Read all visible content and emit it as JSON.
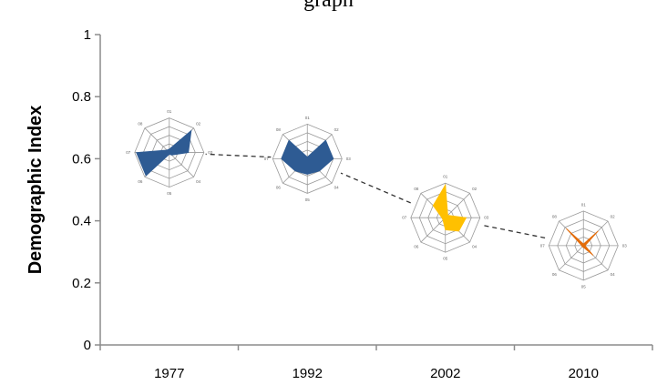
{
  "top_text": "graph",
  "chart_data": {
    "type": "scatter",
    "title": "",
    "xlabel": "",
    "ylabel": "Demographic Index",
    "ylim": [
      0,
      1
    ],
    "yticks": [
      0,
      0.2,
      0.4,
      0.6,
      0.8,
      1
    ],
    "ytick_labels": [
      "0",
      "0.2",
      "0.4",
      "0.6",
      "0.8",
      "1"
    ],
    "categories": [
      "1977",
      "1992",
      "2002",
      "2010"
    ],
    "values": [
      0.62,
      0.6,
      0.41,
      0.32
    ],
    "trend_line": "dashed",
    "grid": false,
    "legend": "none",
    "marker": "radar-glyph",
    "radar_axes": [
      "01",
      "02",
      "03",
      "04",
      "05",
      "06",
      "07",
      "08"
    ],
    "radar_glyphs": [
      {
        "year": "1977",
        "color": "#2E5B93",
        "values": [
          0.1,
          0.9,
          0.55,
          0.1,
          0.05,
          0.95,
          0.95,
          0.1
        ]
      },
      {
        "year": "1992",
        "color": "#2E5B93",
        "values": [
          0.05,
          0.75,
          0.75,
          0.5,
          0.45,
          0.5,
          0.75,
          0.75
        ]
      },
      {
        "year": "2002",
        "color": "#FFC000",
        "values": [
          0.95,
          0.1,
          0.6,
          0.55,
          0.35,
          0.1,
          0.1,
          0.5
        ]
      },
      {
        "year": "2010",
        "color": "#E36C0A",
        "values": [
          0.05,
          0.6,
          0.05,
          0.4,
          0.05,
          0.05,
          0.05,
          0.7
        ]
      }
    ]
  }
}
